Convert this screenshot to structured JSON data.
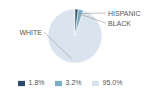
{
  "chart_data": {
    "type": "pie",
    "categories": [
      "WHITE",
      "HISPANIC",
      "BLACK"
    ],
    "values": [
      95.0,
      3.2,
      1.8
    ],
    "value_labels": [
      "95.0%",
      "3.2%",
      "1.8%"
    ],
    "colors": [
      "#d9e4ee",
      "#7aaec4",
      "#2b4a6b"
    ],
    "legend": "bottom"
  }
}
